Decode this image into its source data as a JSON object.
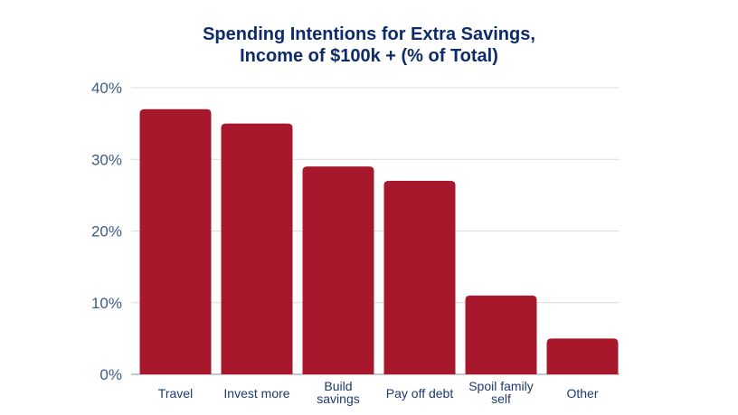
{
  "chart_data": {
    "type": "bar",
    "title_lines": [
      "Spending Intentions for Extra Savings,",
      "Income of $100k + (% of Total)"
    ],
    "categories": [
      [
        "Travel"
      ],
      [
        "Invest more"
      ],
      [
        "Build",
        "savings"
      ],
      [
        "Pay off debt"
      ],
      [
        "Spoil family",
        "self"
      ],
      [
        "Other"
      ]
    ],
    "values": [
      37,
      35,
      29,
      27,
      11,
      5
    ],
    "unit": "%",
    "ylim": [
      0,
      40
    ],
    "yticks": [
      0,
      10,
      20,
      30,
      40
    ],
    "ytick_labels": [
      "0%",
      "10%",
      "20%",
      "30%",
      "40%"
    ],
    "grid": true,
    "bar_color": "#a8182c",
    "title_color": "#0d2b6b"
  }
}
